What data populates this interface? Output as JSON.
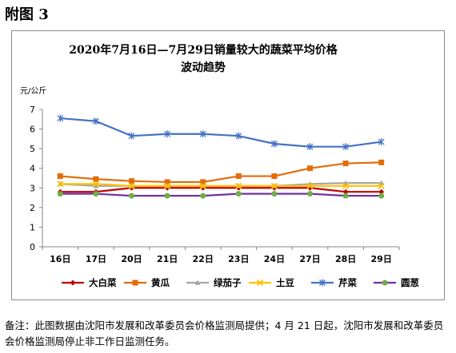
{
  "figure_label": "附图 3",
  "footnote": "备注：此图数据由沈阳市发展和改革委员会价格监测局提供；4 月 21 日起，沈阳市发展和改革委员会价格监测局停止非工作日监测任务。",
  "chart_data": {
    "type": "line",
    "title_lines": [
      "2020年7月16日—7月29日销量较大的蔬菜平均价格",
      "波动趋势"
    ],
    "ylabel": "元/公斤",
    "xlabel": "",
    "ylim": [
      0,
      7
    ],
    "yticks": [
      "0",
      "1",
      "2",
      "3",
      "4",
      "5",
      "6",
      "7"
    ],
    "grid": false,
    "legend_position": "bottom",
    "categories": [
      "16日",
      "17日",
      "20日",
      "21日",
      "22日",
      "23日",
      "24日",
      "27日",
      "28日",
      "29日"
    ],
    "series": [
      {
        "name": "大白菜",
        "color": "#c00000",
        "marker": "diamond",
        "values": [
          2.8,
          2.8,
          3.0,
          3.0,
          3.0,
          3.0,
          3.0,
          3.0,
          2.8,
          2.8
        ]
      },
      {
        "name": "黄瓜",
        "color": "#e36c0a",
        "marker": "square",
        "values": [
          3.6,
          3.45,
          3.35,
          3.3,
          3.3,
          3.6,
          3.6,
          4.0,
          4.25,
          4.3
        ]
      },
      {
        "name": "绿茄子",
        "color": "#a6a6a6",
        "marker": "triangle",
        "values": [
          3.2,
          3.1,
          3.1,
          3.1,
          3.1,
          3.1,
          3.1,
          3.2,
          3.25,
          3.25
        ]
      },
      {
        "name": "土豆",
        "color": "#ffc000",
        "marker": "cross",
        "values": [
          3.2,
          3.2,
          3.1,
          3.1,
          3.1,
          3.1,
          3.1,
          3.1,
          3.1,
          3.1
        ]
      },
      {
        "name": "芹菜",
        "color": "#4472c4",
        "marker": "star",
        "values": [
          6.55,
          6.4,
          5.65,
          5.75,
          5.75,
          5.65,
          5.25,
          5.1,
          5.1,
          5.35
        ]
      },
      {
        "name": "圆葱",
        "color": "#7030a0",
        "marker": "circle",
        "marker_color": "#70ad47",
        "values": [
          2.7,
          2.7,
          2.6,
          2.6,
          2.6,
          2.7,
          2.7,
          2.7,
          2.6,
          2.6
        ]
      }
    ]
  }
}
